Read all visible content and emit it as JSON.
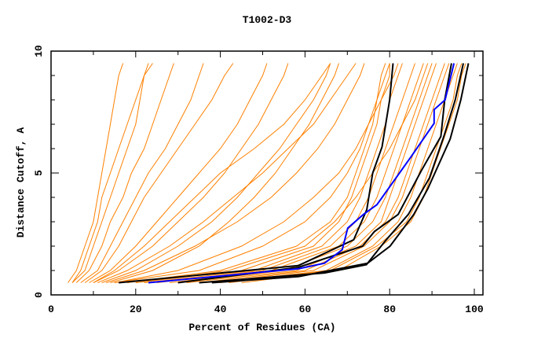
{
  "chart_data": {
    "type": "line",
    "title": "T1002-D3",
    "xlabel": "Percent of Residues (CA)",
    "ylabel": "Distance Cutoff, A",
    "xlim": [
      0,
      100
    ],
    "ylim": [
      0,
      10
    ],
    "x_ticks": [
      0,
      20,
      40,
      60,
      80,
      100
    ],
    "y_ticks": [
      0,
      5,
      10
    ],
    "grid": false,
    "colors": {
      "other_models": "#ff8000",
      "highlight_black": "#000000",
      "highlight_blue": "#0000ff"
    },
    "y_levels": [
      0.5,
      1,
      2,
      3,
      4,
      5,
      6,
      7,
      8,
      9,
      9.5
    ],
    "orange_series_x": [
      [
        4,
        6,
        8,
        10,
        11,
        12,
        13,
        14,
        15,
        16,
        17
      ],
      [
        5,
        8,
        10,
        12,
        14,
        16,
        18,
        20,
        21,
        22,
        23
      ],
      [
        6,
        9,
        12,
        14,
        17,
        19,
        22,
        24,
        26,
        28,
        29
      ],
      [
        7,
        11,
        14,
        17,
        20,
        23,
        27,
        30,
        33,
        35,
        36
      ],
      [
        5,
        7,
        9,
        11,
        12,
        14,
        16,
        18,
        20,
        22,
        24
      ],
      [
        8,
        12,
        16,
        19,
        22,
        26,
        30,
        34,
        38,
        41,
        43
      ],
      [
        9,
        14,
        20,
        25,
        30,
        35,
        40,
        44,
        47,
        50,
        51
      ],
      [
        10,
        16,
        24,
        30,
        36,
        41,
        45,
        49,
        52,
        55,
        56
      ],
      [
        12,
        20,
        30,
        38,
        44,
        49,
        54,
        58,
        62,
        65,
        66
      ],
      [
        11,
        18,
        28,
        36,
        43,
        50,
        56,
        62,
        66,
        70,
        72
      ],
      [
        10,
        15,
        22,
        28,
        34,
        40,
        48,
        55,
        60,
        64,
        66
      ],
      [
        14,
        24,
        35,
        42,
        48,
        53,
        57,
        61,
        64,
        67,
        68
      ],
      [
        13,
        22,
        34,
        44,
        52,
        58,
        63,
        67,
        70,
        73,
        74
      ],
      [
        20,
        45,
        62,
        68,
        71,
        73,
        75,
        77,
        78,
        80,
        80
      ],
      [
        25,
        50,
        66,
        72,
        75,
        77,
        79,
        81,
        83,
        85,
        86
      ],
      [
        30,
        55,
        70,
        76,
        79,
        81,
        83,
        85,
        87,
        89,
        90
      ],
      [
        35,
        60,
        73,
        79,
        82,
        84,
        86,
        88,
        90,
        92,
        93
      ],
      [
        40,
        65,
        76,
        82,
        85,
        87,
        89,
        91,
        93,
        95,
        96
      ],
      [
        45,
        68,
        78,
        85,
        88,
        90,
        92,
        94,
        96,
        97,
        98
      ],
      [
        22,
        48,
        64,
        70,
        73,
        75,
        77,
        79,
        80,
        82,
        83
      ],
      [
        28,
        52,
        68,
        74,
        77,
        79,
        81,
        83,
        85,
        87,
        88
      ],
      [
        32,
        58,
        72,
        78,
        80,
        82,
        84,
        86,
        88,
        90,
        91
      ],
      [
        38,
        62,
        74,
        80,
        83,
        85,
        87,
        89,
        91,
        93,
        94
      ],
      [
        18,
        40,
        58,
        66,
        70,
        72,
        74,
        76,
        77,
        78,
        79
      ],
      [
        15,
        35,
        50,
        60,
        66,
        70,
        73,
        75,
        77,
        79,
        80
      ],
      [
        15,
        30,
        45,
        55,
        62,
        68,
        72,
        75,
        78,
        81,
        82
      ],
      [
        42,
        66,
        77,
        84,
        87,
        89,
        91,
        93,
        95,
        96,
        97
      ],
      [
        20,
        42,
        60,
        67,
        72,
        76,
        80,
        83,
        86,
        88,
        89
      ]
    ],
    "highlight_series": [
      {
        "color": "#000000",
        "points": [
          [
            16,
            0.5
          ],
          [
            58.4,
            1.2
          ],
          [
            71.5,
            2.26
          ],
          [
            74.6,
            3.5
          ],
          [
            76,
            5
          ],
          [
            78.2,
            6.07
          ],
          [
            80,
            8
          ],
          [
            80.8,
            9.5
          ]
        ]
      },
      {
        "color": "#000000",
        "points": [
          [
            30,
            0.5
          ],
          [
            58.4,
            1.13
          ],
          [
            73.6,
            2.0
          ],
          [
            76.4,
            2.6
          ],
          [
            82,
            3.3
          ],
          [
            87.5,
            5.1
          ],
          [
            92.1,
            6.5
          ],
          [
            93,
            8
          ],
          [
            94.6,
            9.5
          ]
        ]
      },
      {
        "color": "#000000",
        "points": [
          [
            35,
            0.5
          ],
          [
            64.6,
            0.9
          ],
          [
            74.5,
            1.24
          ],
          [
            78.9,
            2.2
          ],
          [
            84.4,
            3.3
          ],
          [
            89.4,
            4.8
          ],
          [
            92.8,
            6.5
          ],
          [
            95.5,
            8
          ],
          [
            97.4,
            9.5
          ]
        ]
      },
      {
        "color": "#000000",
        "points": [
          [
            38,
            0.5
          ],
          [
            58.4,
            0.75
          ],
          [
            74.8,
            1.3
          ],
          [
            80.1,
            2.0
          ],
          [
            85.7,
            3.3
          ],
          [
            89,
            4.35
          ],
          [
            94.3,
            6.4
          ],
          [
            96.8,
            8
          ],
          [
            98.6,
            9.5
          ]
        ]
      },
      {
        "color": "#0000ff",
        "points": [
          [
            23,
            0.5
          ],
          [
            58.4,
            1.07
          ],
          [
            64.6,
            1.3
          ],
          [
            68.8,
            1.85
          ],
          [
            70.1,
            2.74
          ],
          [
            73.8,
            3.3
          ],
          [
            77,
            3.7
          ],
          [
            85,
            5.65
          ],
          [
            90.5,
            7.04
          ],
          [
            90.5,
            7.6
          ],
          [
            93.1,
            8.0
          ],
          [
            95.2,
            9.5
          ]
        ]
      }
    ]
  }
}
